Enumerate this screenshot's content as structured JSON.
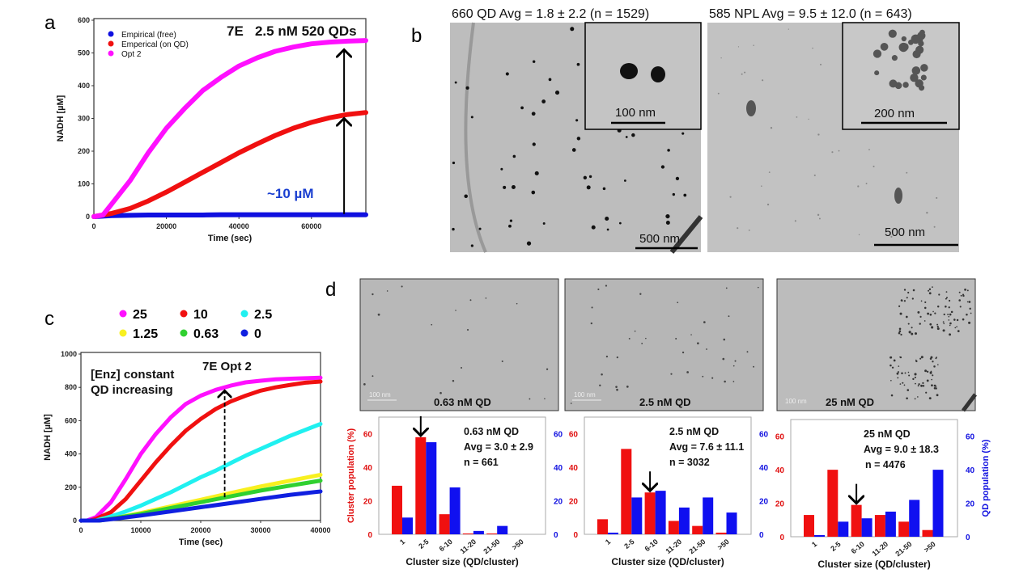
{
  "panel_labels": {
    "a": "a",
    "b": "b",
    "c": "c",
    "d": "d"
  },
  "panel_b": {
    "left_title": "660 QD Avg = 1.8 ± 2.2 (n = 1529)",
    "right_title": "585 NPL Avg = 9.5 ± 12.0 (n = 643)",
    "left_inset_scale": "100 nm",
    "left_scale": "500 nm",
    "right_inset_scale": "200 nm",
    "right_scale": "500 nm"
  },
  "panel_d_images": [
    {
      "scale": "100 nm",
      "label": "0.63 nM QD"
    },
    {
      "scale": "100 nm",
      "label": "2.5 nM QD"
    },
    {
      "scale": "100 nm",
      "label": "25 nM QD"
    }
  ],
  "chart_data": [
    {
      "type": "line",
      "panel": "a",
      "title": "7E   2.5 nM 520 QDs",
      "xlabel": "Time (sec)",
      "ylabel": "NADH [µM]",
      "xlim": [
        0,
        75000
      ],
      "ylim": [
        0,
        600
      ],
      "xticks": [
        0,
        20000,
        40000,
        60000
      ],
      "yticks": [
        0,
        100,
        200,
        300,
        400,
        500,
        600
      ],
      "legend": "top-left",
      "annotation": "~10 µM",
      "series": [
        {
          "name": "Empirical (free)",
          "color": "#1010e0",
          "x": [
            0,
            5000,
            10000,
            15000,
            20000,
            25000,
            30000,
            35000,
            40000,
            45000,
            50000,
            55000,
            60000,
            65000,
            70000,
            75000
          ],
          "y": [
            0,
            3,
            4,
            5,
            5,
            5,
            5,
            6,
            6,
            6,
            6,
            6,
            6,
            6,
            6,
            6
          ]
        },
        {
          "name": "Emperical (on QD)",
          "color": "#f01010",
          "x": [
            0,
            5000,
            10000,
            15000,
            20000,
            25000,
            30000,
            35000,
            40000,
            45000,
            50000,
            55000,
            60000,
            65000,
            70000,
            75000
          ],
          "y": [
            0,
            10,
            25,
            48,
            75,
            105,
            135,
            165,
            195,
            222,
            248,
            270,
            288,
            302,
            312,
            318
          ]
        },
        {
          "name": "Opt 2",
          "color": "#ff10ff",
          "x": [
            0,
            2500,
            5000,
            10000,
            15000,
            20000,
            25000,
            30000,
            35000,
            40000,
            45000,
            50000,
            55000,
            60000,
            65000,
            70000,
            75000
          ],
          "y": [
            0,
            5,
            40,
            110,
            195,
            270,
            330,
            385,
            425,
            460,
            485,
            505,
            518,
            528,
            533,
            536,
            538
          ]
        }
      ]
    },
    {
      "type": "line",
      "panel": "c",
      "title": "7E Opt 2",
      "annotation_lines": [
        "[Enz] constant",
        "QD increasing"
      ],
      "xlabel": "Time (sec)",
      "ylabel": "NADH [µM]",
      "xlim": [
        0,
        40000
      ],
      "ylim": [
        0,
        1000
      ],
      "xticks": [
        0,
        10000,
        20000,
        30000,
        40000
      ],
      "yticks": [
        0,
        200,
        400,
        600,
        800,
        1000
      ],
      "legend": "top",
      "series": [
        {
          "name": "25",
          "color": "#ff10ff",
          "x": [
            1000,
            2500,
            5000,
            7500,
            10000,
            12500,
            15000,
            17500,
            20000,
            22500,
            25000,
            27500,
            30000,
            32500,
            35000,
            37500,
            40000
          ],
          "y": [
            0,
            20,
            110,
            250,
            400,
            520,
            620,
            700,
            750,
            785,
            810,
            830,
            840,
            848,
            852,
            855,
            858
          ]
        },
        {
          "name": "10",
          "color": "#f01010",
          "x": [
            1500,
            2500,
            5000,
            7500,
            10000,
            12500,
            15000,
            17500,
            20000,
            22500,
            25000,
            27500,
            30000,
            32500,
            35000,
            37500,
            40000
          ],
          "y": [
            0,
            10,
            50,
            130,
            240,
            350,
            450,
            540,
            610,
            670,
            715,
            750,
            780,
            800,
            815,
            828,
            835
          ]
        },
        {
          "name": "2.5",
          "color": "#20f0f0",
          "x": [
            2500,
            5000,
            7500,
            10000,
            12500,
            15000,
            17500,
            20000,
            22500,
            25000,
            27500,
            30000,
            32500,
            35000,
            37500,
            40000
          ],
          "y": [
            0,
            25,
            55,
            90,
            130,
            170,
            215,
            260,
            300,
            345,
            390,
            430,
            470,
            510,
            545,
            580
          ]
        },
        {
          "name": "1.25",
          "color": "#f8f020",
          "x": [
            3000,
            5000,
            10000,
            15000,
            20000,
            25000,
            30000,
            35000,
            40000
          ],
          "y": [
            0,
            10,
            45,
            85,
            125,
            165,
            205,
            240,
            275
          ]
        },
        {
          "name": "0.63",
          "color": "#30d030",
          "x": [
            3000,
            5000,
            10000,
            15000,
            20000,
            25000,
            30000,
            35000,
            40000
          ],
          "y": [
            0,
            10,
            40,
            75,
            110,
            145,
            180,
            210,
            240
          ]
        },
        {
          "name": "0",
          "color": "#1020e0",
          "x": [
            0,
            3000,
            5000,
            10000,
            15000,
            20000,
            25000,
            30000,
            35000,
            40000
          ],
          "y": [
            0,
            0,
            8,
            30,
            55,
            80,
            105,
            130,
            155,
            175
          ]
        }
      ]
    },
    {
      "type": "bar",
      "panel": "d1",
      "categories": [
        "1",
        "2-5",
        "6-10",
        "11-20",
        "21-50",
        ">50"
      ],
      "ylabel_left": "Cluster population (%)",
      "ylabel_right": "",
      "xlabel": "Cluster size (QD/cluster)",
      "ylim": [
        0,
        70
      ],
      "yticks": [
        0,
        20,
        40,
        60
      ],
      "annotation_lines": [
        "0.63 nM QD",
        "Avg = 3.0 ± 2.9",
        "n = 661"
      ],
      "arrow_category": "2-5",
      "series": [
        {
          "name": "Cluster population",
          "color": "#f01010",
          "values": [
            29,
            58,
            12,
            0.5,
            0.5,
            0
          ]
        },
        {
          "name": "QD population",
          "color": "#1010f0",
          "values": [
            10,
            55,
            28,
            2,
            5,
            0
          ]
        }
      ]
    },
    {
      "type": "bar",
      "panel": "d2",
      "categories": [
        "1",
        "2-5",
        "6-10",
        "11-20",
        "21-50",
        ">50"
      ],
      "ylabel_left": "",
      "ylabel_right": "",
      "xlabel": "Cluster size (QD/cluster)",
      "ylim": [
        0,
        70
      ],
      "yticks": [
        0,
        20,
        40,
        60
      ],
      "annotation_lines": [
        "2.5 nM QD",
        "Avg = 7.6 ± 11.1",
        "n = 3032"
      ],
      "arrow_category": "6-10",
      "series": [
        {
          "name": "Cluster population",
          "color": "#f01010",
          "values": [
            9,
            51,
            25,
            8,
            5,
            1
          ]
        },
        {
          "name": "QD population",
          "color": "#1010f0",
          "values": [
            1,
            22,
            26,
            16,
            22,
            13
          ]
        }
      ]
    },
    {
      "type": "bar",
      "panel": "d3",
      "categories": [
        "1",
        "2-5",
        "6-10",
        "11-20",
        "21-50",
        ">50"
      ],
      "ylabel_left": "",
      "ylabel_right": "QD population (%)",
      "xlabel": "Cluster size (QD/cluster)",
      "ylim": [
        0,
        70
      ],
      "yticks": [
        0,
        20,
        40,
        60
      ],
      "annotation_lines": [
        "25 nM QD",
        "Avg = 9.0 ± 18.3",
        "n = 4476"
      ],
      "arrow_category": "6-10",
      "series": [
        {
          "name": "Cluster population",
          "color": "#f01010",
          "values": [
            13,
            40,
            19,
            13,
            9,
            4
          ]
        },
        {
          "name": "QD population",
          "color": "#1010f0",
          "values": [
            1,
            9,
            11,
            15,
            22,
            40
          ]
        }
      ]
    }
  ]
}
